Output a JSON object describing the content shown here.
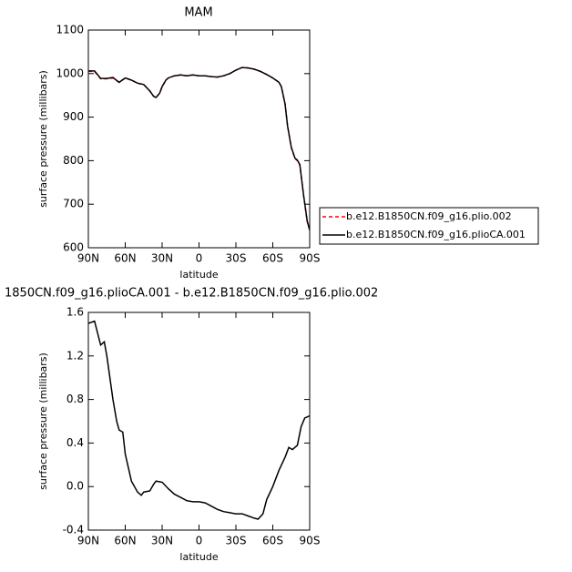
{
  "chart_data": [
    {
      "type": "line",
      "title": "MAM",
      "xlabel": "latitude",
      "ylabel": "surface pressure (millibars)",
      "x": [
        90,
        85,
        80,
        75,
        70,
        65,
        60,
        55,
        50,
        45,
        40,
        37,
        35,
        32,
        30,
        27,
        25,
        20,
        15,
        10,
        5,
        0,
        -5,
        -10,
        -15,
        -20,
        -25,
        -30,
        -35,
        -40,
        -45,
        -50,
        -55,
        -60,
        -65,
        -67,
        -70,
        -72,
        -75,
        -78,
        -80,
        -82,
        -85,
        -88,
        -90
      ],
      "series": [
        {
          "name": "b.e12.B1850CN.f09_g16.plio.002",
          "color": "#ff0000",
          "dash": true,
          "values": [
            1005,
            1005,
            988,
            988,
            990,
            980,
            990,
            985,
            978,
            975,
            960,
            948,
            945,
            955,
            970,
            985,
            990,
            995,
            997,
            995,
            997,
            995,
            995,
            993,
            992,
            995,
            1000,
            1008,
            1014,
            1013,
            1010,
            1005,
            998,
            990,
            980,
            970,
            930,
            880,
            830,
            805,
            800,
            790,
            720,
            660,
            640
          ]
        },
        {
          "name": "b.e12.B1850CN.f09_g16.plioCA.001",
          "color": "#000000",
          "dash": false,
          "values": [
            1006,
            1006,
            989,
            989,
            991,
            980,
            990,
            985,
            978,
            975,
            960,
            948,
            945,
            955,
            970,
            985,
            990,
            995,
            997,
            995,
            997,
            995,
            995,
            993,
            992,
            995,
            1000,
            1008,
            1014,
            1013,
            1010,
            1005,
            998,
            990,
            980,
            970,
            930,
            880,
            831,
            806,
            801,
            791,
            721,
            661,
            641
          ]
        }
      ],
      "xlim": [
        90,
        -90
      ],
      "xticks": [
        {
          "value": 90,
          "label": "90N"
        },
        {
          "value": 60,
          "label": "60N"
        },
        {
          "value": 30,
          "label": "30N"
        },
        0,
        {
          "value": -30,
          "label": "30S"
        },
        {
          "value": -60,
          "label": "60S"
        },
        {
          "value": -90,
          "label": "90S"
        }
      ],
      "ylim": [
        600,
        1100
      ],
      "yticks": [
        600,
        700,
        800,
        900,
        1000,
        1100
      ],
      "legend": "right"
    },
    {
      "type": "line",
      "title": "1850CN.f09_g16.plioCA.001 - b.e12.B1850CN.f09_g16.plio.002",
      "xlabel": "latitude",
      "ylabel": "surface pressure (millibars)",
      "x": [
        90,
        85,
        80,
        77,
        75,
        70,
        67,
        65,
        62,
        60,
        55,
        50,
        47,
        45,
        40,
        37,
        35,
        30,
        25,
        20,
        15,
        10,
        5,
        0,
        -5,
        -10,
        -15,
        -20,
        -25,
        -30,
        -35,
        -40,
        -45,
        -48,
        -52,
        -55,
        -60,
        -65,
        -70,
        -73,
        -76,
        -80,
        -83,
        -86,
        -90
      ],
      "series": [
        {
          "color": "#000000",
          "dash": false,
          "values": [
            1.5,
            1.52,
            1.3,
            1.33,
            1.2,
            0.8,
            0.6,
            0.52,
            0.5,
            0.3,
            0.05,
            -0.05,
            -0.08,
            -0.05,
            -0.04,
            0.02,
            0.05,
            0.04,
            -0.02,
            -0.07,
            -0.1,
            -0.13,
            -0.14,
            -0.14,
            -0.15,
            -0.18,
            -0.21,
            -0.23,
            -0.24,
            -0.25,
            -0.25,
            -0.27,
            -0.29,
            -0.3,
            -0.25,
            -0.12,
            0.0,
            0.15,
            0.27,
            0.36,
            0.34,
            0.38,
            0.55,
            0.63,
            0.65
          ]
        }
      ],
      "xlim": [
        90,
        -90
      ],
      "xticks": [
        {
          "value": 90,
          "label": "90N"
        },
        {
          "value": 60,
          "label": "60N"
        },
        {
          "value": 30,
          "label": "30N"
        },
        0,
        {
          "value": -30,
          "label": "30S"
        },
        {
          "value": -60,
          "label": "60S"
        },
        {
          "value": -90,
          "label": "90S"
        }
      ],
      "ylim": [
        -0.4,
        1.6
      ],
      "yticks": [
        -0.4,
        {
          "value": 0,
          "label": "0.0"
        },
        0.4,
        0.8,
        1.2,
        1.6
      ]
    }
  ]
}
